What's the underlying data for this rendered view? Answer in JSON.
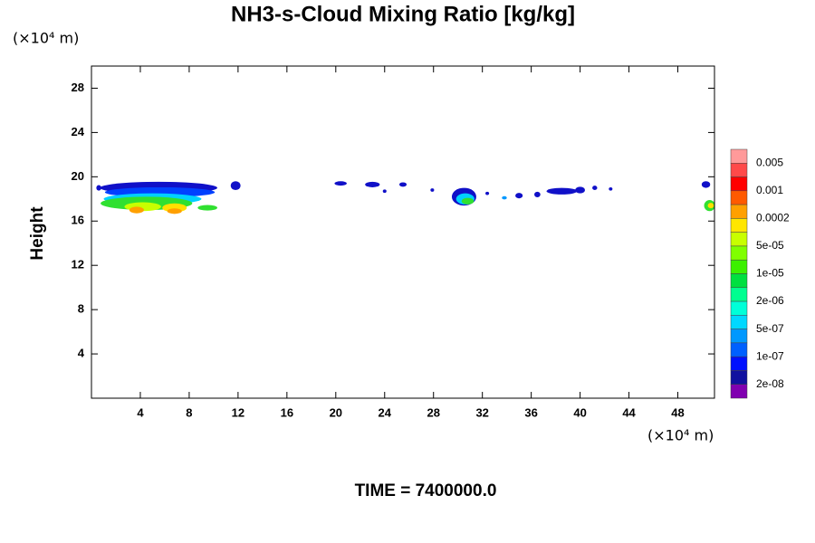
{
  "chart_data": {
    "type": "contour",
    "title": "NH3-s-Cloud Mixing Ratio [kg/kg]",
    "yunit": "(×10⁴ m)",
    "xunit": "(×10⁴ m)",
    "ylabel": "Height",
    "footer": "TIME = 7400000.0",
    "xlim": [
      0,
      51
    ],
    "ylim": [
      0,
      30
    ],
    "xticks": [
      4,
      8,
      12,
      16,
      20,
      24,
      28,
      32,
      36,
      40,
      44,
      48
    ],
    "yticks": [
      4,
      8,
      12,
      16,
      20,
      24,
      28
    ],
    "colorbar": {
      "colors": [
        "#ff9a9a",
        "#ff4a4a",
        "#ff0000",
        "#ff5a00",
        "#ffa000",
        "#ffe600",
        "#c8ff00",
        "#80ff00",
        "#3cf000",
        "#00e040",
        "#00ff90",
        "#00ffd8",
        "#00d8ff",
        "#0098ff",
        "#0060ff",
        "#0010ff",
        "#1010a0",
        "#8000b0"
      ],
      "ticks": [
        0.005,
        0.001,
        0.0002,
        {
          "value": 5e-05,
          "label": "5e-05"
        },
        {
          "value": 1e-05,
          "label": "1e-05"
        },
        {
          "value": 2e-06,
          "label": "2e-06"
        },
        {
          "value": 5e-07,
          "label": "5e-07"
        },
        {
          "value": 1e-07,
          "label": "1e-07"
        },
        {
          "value": 2e-08,
          "label": "2e-08"
        }
      ]
    },
    "cells": [
      {
        "x": 5.5,
        "y": 19.0,
        "w": 9.6,
        "h": 1.1,
        "color": "#1010c8"
      },
      {
        "x": 5.6,
        "y": 18.6,
        "w": 9.0,
        "h": 0.9,
        "color": "#0040ff"
      },
      {
        "x": 5.0,
        "y": 18.0,
        "w": 8.0,
        "h": 1.0,
        "color": "#00d0ff"
      },
      {
        "x": 4.5,
        "y": 17.6,
        "w": 7.5,
        "h": 1.2,
        "color": "#30e030"
      },
      {
        "x": 4.2,
        "y": 17.3,
        "w": 3.0,
        "h": 0.8,
        "color": "#c8ff00"
      },
      {
        "x": 3.7,
        "y": 17.0,
        "w": 1.2,
        "h": 0.6,
        "color": "#ffa000"
      },
      {
        "x": 6.8,
        "y": 17.2,
        "w": 2.0,
        "h": 0.8,
        "color": "#ffe000"
      },
      {
        "x": 6.8,
        "y": 16.9,
        "w": 1.2,
        "h": 0.5,
        "color": "#ffa000"
      },
      {
        "x": 9.5,
        "y": 17.2,
        "w": 1.6,
        "h": 0.5,
        "color": "#30e030"
      },
      {
        "x": 11.8,
        "y": 19.2,
        "w": 0.8,
        "h": 0.8,
        "color": "#1010c8"
      },
      {
        "x": 0.6,
        "y": 19.0,
        "w": 0.4,
        "h": 0.5,
        "color": "#1010c8"
      },
      {
        "x": 20.4,
        "y": 19.4,
        "w": 1.0,
        "h": 0.4,
        "color": "#1010c8"
      },
      {
        "x": 23.0,
        "y": 19.3,
        "w": 1.2,
        "h": 0.5,
        "color": "#1010c8"
      },
      {
        "x": 25.5,
        "y": 19.3,
        "w": 0.6,
        "h": 0.4,
        "color": "#1010c8"
      },
      {
        "x": 24.0,
        "y": 18.7,
        "w": 0.3,
        "h": 0.3,
        "color": "#1010c8"
      },
      {
        "x": 27.9,
        "y": 18.8,
        "w": 0.3,
        "h": 0.3,
        "color": "#1010c8"
      },
      {
        "x": 30.5,
        "y": 18.2,
        "w": 2.0,
        "h": 1.6,
        "color": "#1010c8"
      },
      {
        "x": 30.6,
        "y": 18.0,
        "w": 1.5,
        "h": 1.0,
        "color": "#00d0ff"
      },
      {
        "x": 30.8,
        "y": 17.8,
        "w": 1.0,
        "h": 0.6,
        "color": "#30e030"
      },
      {
        "x": 32.4,
        "y": 18.5,
        "w": 0.3,
        "h": 0.3,
        "color": "#1010c8"
      },
      {
        "x": 33.8,
        "y": 18.1,
        "w": 0.4,
        "h": 0.3,
        "color": "#0098ff"
      },
      {
        "x": 35.0,
        "y": 18.3,
        "w": 0.6,
        "h": 0.5,
        "color": "#1010c8"
      },
      {
        "x": 36.5,
        "y": 18.4,
        "w": 0.5,
        "h": 0.5,
        "color": "#1010c8"
      },
      {
        "x": 38.5,
        "y": 18.7,
        "w": 2.5,
        "h": 0.6,
        "color": "#1010c8"
      },
      {
        "x": 40.0,
        "y": 18.8,
        "w": 0.8,
        "h": 0.6,
        "color": "#1010c8"
      },
      {
        "x": 41.2,
        "y": 19.0,
        "w": 0.4,
        "h": 0.4,
        "color": "#1010c8"
      },
      {
        "x": 42.5,
        "y": 18.9,
        "w": 0.3,
        "h": 0.3,
        "color": "#1010c8"
      },
      {
        "x": 50.3,
        "y": 19.3,
        "w": 0.7,
        "h": 0.6,
        "color": "#1010c8"
      },
      {
        "x": 50.6,
        "y": 17.4,
        "w": 0.9,
        "h": 1.0,
        "color": "#30e030"
      },
      {
        "x": 50.7,
        "y": 17.4,
        "w": 0.5,
        "h": 0.5,
        "color": "#ffe000"
      }
    ]
  }
}
